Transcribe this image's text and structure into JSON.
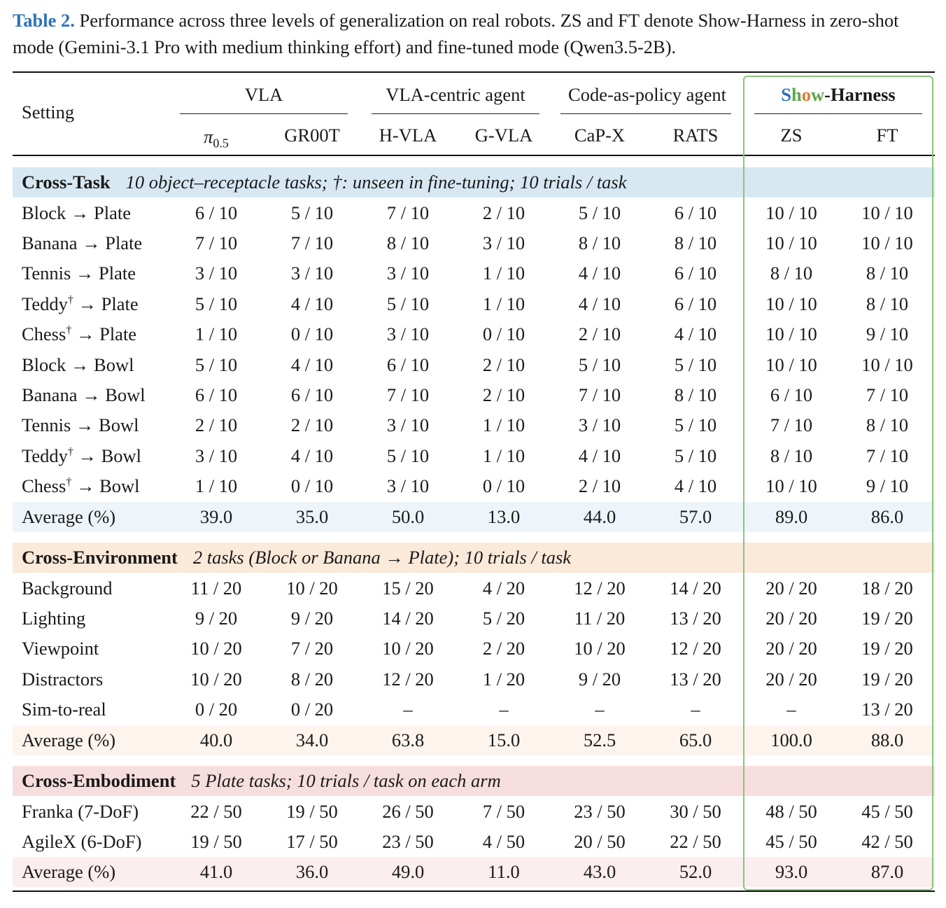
{
  "caption": {
    "label": "Table 2.",
    "text": "Performance across three levels of generalization on real robots. ZS and FT denote Show-Harness in zero-shot mode (Gemini-3.1 Pro with medium thinking effort) and fine-tuned mode (Qwen3.5-2B)."
  },
  "header": {
    "setting": "Setting",
    "groups": {
      "vla": "VLA",
      "vla_agent": "VLA-centric agent",
      "cap_agent": "Code-as-policy agent",
      "harness_parts": [
        "S",
        "h",
        "o",
        "w",
        "-Harness"
      ]
    },
    "columns": {
      "pi_base": "π",
      "pi_sub": "0.5",
      "gr00t": "GR00T",
      "hvla": "H-VLA",
      "gvla": "G-VLA",
      "capx": "CaP-X",
      "rats": "RATS",
      "zs": "ZS",
      "ft": "FT"
    }
  },
  "colors": {
    "caption_label": "#2f72b8",
    "cross_task_band": "#d7e8f3",
    "cross_task_avg": "#eef5fa",
    "cross_env_band": "#fbe9da",
    "cross_env_avg": "#fdf4ee",
    "cross_emb_band": "#f7dede",
    "cross_emb_avg": "#fbeeee",
    "harness_box": "#8cc37e"
  },
  "sections": [
    {
      "title": "Cross-Task",
      "note": "10 object–receptacle tasks; †: unseen in fine-tuning; 10 trials / task",
      "rows": [
        {
          "label": "Block → Plate",
          "sup": "",
          "values": [
            "6 / 10",
            "5 / 10",
            "7 / 10",
            "2 / 10",
            "5 / 10",
            "6 / 10",
            "10 / 10",
            "10 / 10"
          ]
        },
        {
          "label": "Banana → Plate",
          "sup": "",
          "values": [
            "7 / 10",
            "7 / 10",
            "8 / 10",
            "3 / 10",
            "8 / 10",
            "8 / 10",
            "10 / 10",
            "10 / 10"
          ]
        },
        {
          "label": "Tennis → Plate",
          "sup": "",
          "values": [
            "3 / 10",
            "3 / 10",
            "3 / 10",
            "1 / 10",
            "4 / 10",
            "6 / 10",
            "8 / 10",
            "8 / 10"
          ]
        },
        {
          "label": "Teddy",
          "sup": "†",
          "after": " → Plate",
          "values": [
            "5 / 10",
            "4 / 10",
            "5 / 10",
            "1 / 10",
            "4 / 10",
            "6 / 10",
            "10 / 10",
            "8 / 10"
          ]
        },
        {
          "label": "Chess",
          "sup": "†",
          "after": " → Plate",
          "values": [
            "1 / 10",
            "0 / 10",
            "3 / 10",
            "0 / 10",
            "2 / 10",
            "4 / 10",
            "10 / 10",
            "9 / 10"
          ]
        },
        {
          "label": "Block → Bowl",
          "sup": "",
          "values": [
            "5 / 10",
            "4 / 10",
            "6 / 10",
            "2 / 10",
            "5 / 10",
            "5 / 10",
            "10 / 10",
            "10 / 10"
          ]
        },
        {
          "label": "Banana → Bowl",
          "sup": "",
          "values": [
            "6 / 10",
            "6 / 10",
            "7 / 10",
            "2 / 10",
            "7 / 10",
            "8 / 10",
            "6 / 10",
            "7 / 10"
          ]
        },
        {
          "label": "Tennis → Bowl",
          "sup": "",
          "values": [
            "2 / 10",
            "2 / 10",
            "3 / 10",
            "1 / 10",
            "3 / 10",
            "5 / 10",
            "7 / 10",
            "8 / 10"
          ]
        },
        {
          "label": "Teddy",
          "sup": "†",
          "after": " → Bowl",
          "values": [
            "3 / 10",
            "4 / 10",
            "5 / 10",
            "1 / 10",
            "4 / 10",
            "5 / 10",
            "8 / 10",
            "7 / 10"
          ]
        },
        {
          "label": "Chess",
          "sup": "†",
          "after": " → Bowl",
          "values": [
            "1 / 10",
            "0 / 10",
            "3 / 10",
            "0 / 10",
            "2 / 10",
            "4 / 10",
            "10 / 10",
            "9 / 10"
          ]
        }
      ],
      "average": {
        "label": "Average (%)",
        "values": [
          "39.0",
          "35.0",
          "50.0",
          "13.0",
          "44.0",
          "57.0",
          "89.0",
          "86.0"
        ]
      }
    },
    {
      "title": "Cross-Environment",
      "note": "2 tasks (Block or Banana → Plate); 10 trials / task",
      "rows": [
        {
          "label": "Background",
          "sup": "",
          "values": [
            "11 / 20",
            "10 / 20",
            "15 / 20",
            "4 / 20",
            "12 / 20",
            "14 / 20",
            "20 / 20",
            "18 / 20"
          ]
        },
        {
          "label": "Lighting",
          "sup": "",
          "values": [
            "9 / 20",
            "9 / 20",
            "14 / 20",
            "5 / 20",
            "11 / 20",
            "13 / 20",
            "20 / 20",
            "19 / 20"
          ]
        },
        {
          "label": "Viewpoint",
          "sup": "",
          "values": [
            "10 / 20",
            "7 / 20",
            "10 / 20",
            "2 / 20",
            "10 / 20",
            "12 / 20",
            "20 / 20",
            "19 / 20"
          ]
        },
        {
          "label": "Distractors",
          "sup": "",
          "values": [
            "10 / 20",
            "8 / 20",
            "12 / 20",
            "1 / 20",
            "9 / 20",
            "13 / 20",
            "20 / 20",
            "19 / 20"
          ]
        },
        {
          "label": "Sim-to-real",
          "sup": "",
          "values": [
            "0 / 20",
            "0 / 20",
            "–",
            "–",
            "–",
            "–",
            "–",
            "13 / 20"
          ]
        }
      ],
      "average": {
        "label": "Average (%)",
        "values": [
          "40.0",
          "34.0",
          "63.8",
          "15.0",
          "52.5",
          "65.0",
          "100.0",
          "88.0"
        ]
      }
    },
    {
      "title": "Cross-Embodiment",
      "note": "5 Plate tasks; 10 trials / task on each arm",
      "rows": [
        {
          "label": "Franka (7-DoF)",
          "sup": "",
          "values": [
            "22 / 50",
            "19 / 50",
            "26 / 50",
            "7 / 50",
            "23 / 50",
            "30 / 50",
            "48 / 50",
            "45 / 50"
          ]
        },
        {
          "label": "AgileX (6-DoF)",
          "sup": "",
          "values": [
            "19 / 50",
            "17 / 50",
            "23 / 50",
            "4 / 50",
            "20 / 50",
            "22 / 50",
            "45 / 50",
            "42 / 50"
          ]
        }
      ],
      "average": {
        "label": "Average (%)",
        "values": [
          "41.0",
          "36.0",
          "49.0",
          "11.0",
          "43.0",
          "52.0",
          "93.0",
          "87.0"
        ]
      }
    }
  ]
}
